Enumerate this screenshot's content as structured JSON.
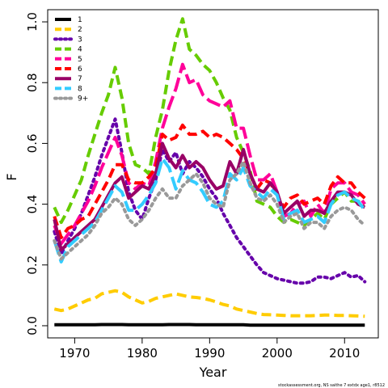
{
  "chart_data": {
    "type": "line",
    "xlabel": "Year",
    "ylabel": "F",
    "xlim": [
      1966,
      2015
    ],
    "ylim": [
      -0.04,
      1.04
    ],
    "xticks": [
      1970,
      1980,
      1990,
      2000,
      2010
    ],
    "yticks": [
      0.0,
      0.2,
      0.4,
      0.6,
      0.8,
      1.0
    ],
    "xtick_labels": [
      "1970",
      "1980",
      "1990",
      "2000",
      "2010"
    ],
    "ytick_labels": [
      "0.0",
      "0.2",
      "0.4",
      "0.6",
      "0.8",
      "1.0"
    ],
    "grid": false,
    "legend_position": "top-left",
    "footnote": "stockassessment.org, NS saithe 7 extdx age1, r8512",
    "x": [
      1967,
      1968,
      1969,
      1970,
      1971,
      1972,
      1973,
      1974,
      1975,
      1976,
      1977,
      1978,
      1979,
      1980,
      1981,
      1982,
      1983,
      1984,
      1985,
      1986,
      1987,
      1988,
      1989,
      1990,
      1991,
      1992,
      1993,
      1994,
      1995,
      1996,
      1997,
      1998,
      1999,
      2000,
      2001,
      2002,
      2003,
      2004,
      2005,
      2006,
      2007,
      2008,
      2009,
      2010,
      2011,
      2012,
      2013
    ],
    "series": [
      {
        "name": "1",
        "color": "#000000",
        "dash": "solid",
        "values": [
          0.003,
          0.003,
          0.003,
          0.003,
          0.003,
          0.003,
          0.003,
          0.004,
          0.004,
          0.004,
          0.004,
          0.003,
          0.003,
          0.003,
          0.003,
          0.003,
          0.003,
          0.004,
          0.004,
          0.004,
          0.004,
          0.003,
          0.003,
          0.003,
          0.003,
          0.003,
          0.003,
          0.003,
          0.003,
          0.002,
          0.002,
          0.002,
          0.002,
          0.002,
          0.002,
          0.002,
          0.002,
          0.002,
          0.002,
          0.002,
          0.002,
          0.002,
          0.002,
          0.002,
          0.002,
          0.002,
          0.002
        ]
      },
      {
        "name": "2",
        "color": "#FFCC00",
        "dash": "dashed",
        "values": [
          0.055,
          0.05,
          0.055,
          0.065,
          0.075,
          0.085,
          0.09,
          0.105,
          0.11,
          0.115,
          0.11,
          0.095,
          0.085,
          0.075,
          0.08,
          0.09,
          0.095,
          0.1,
          0.105,
          0.1,
          0.095,
          0.093,
          0.09,
          0.085,
          0.078,
          0.07,
          0.065,
          0.055,
          0.05,
          0.045,
          0.04,
          0.037,
          0.036,
          0.035,
          0.034,
          0.033,
          0.033,
          0.033,
          0.033,
          0.034,
          0.035,
          0.035,
          0.034,
          0.034,
          0.033,
          0.032,
          0.031
        ]
      },
      {
        "name": "3",
        "color": "#6600AA",
        "dash": "dotted",
        "values": [
          0.31,
          0.235,
          0.28,
          0.32,
          0.37,
          0.43,
          0.49,
          0.56,
          0.62,
          0.68,
          0.57,
          0.44,
          0.38,
          0.35,
          0.42,
          0.48,
          0.58,
          0.54,
          0.57,
          0.5,
          0.54,
          0.52,
          0.49,
          0.45,
          0.42,
          0.37,
          0.33,
          0.29,
          0.26,
          0.23,
          0.2,
          0.175,
          0.165,
          0.155,
          0.15,
          0.145,
          0.14,
          0.14,
          0.145,
          0.16,
          0.16,
          0.155,
          0.165,
          0.175,
          0.16,
          0.165,
          0.145
        ]
      },
      {
        "name": "4",
        "color": "#66CC00",
        "dash": "dashed",
        "values": [
          0.39,
          0.34,
          0.38,
          0.43,
          0.48,
          0.56,
          0.63,
          0.7,
          0.76,
          0.85,
          0.75,
          0.6,
          0.53,
          0.52,
          0.5,
          0.62,
          0.71,
          0.84,
          0.94,
          1.01,
          0.91,
          0.89,
          0.86,
          0.84,
          0.8,
          0.75,
          0.71,
          0.62,
          0.57,
          0.51,
          0.41,
          0.4,
          0.39,
          0.36,
          0.34,
          0.35,
          0.34,
          0.33,
          0.35,
          0.37,
          0.35,
          0.4,
          0.42,
          0.44,
          0.41,
          0.41,
          0.4
        ]
      },
      {
        "name": "5",
        "color": "#FF0099",
        "dash": "longdash",
        "values": [
          0.33,
          0.27,
          0.3,
          0.33,
          0.37,
          0.41,
          0.46,
          0.52,
          0.57,
          0.62,
          0.56,
          0.47,
          0.45,
          0.47,
          0.46,
          0.54,
          0.65,
          0.72,
          0.78,
          0.86,
          0.8,
          0.81,
          0.76,
          0.74,
          0.73,
          0.72,
          0.74,
          0.65,
          0.65,
          0.56,
          0.48,
          0.48,
          0.5,
          0.44,
          0.36,
          0.37,
          0.4,
          0.41,
          0.36,
          0.4,
          0.37,
          0.45,
          0.47,
          0.47,
          0.44,
          0.43,
          0.4
        ]
      },
      {
        "name": "6",
        "color": "#FF0000",
        "dash": "dashed",
        "values": [
          0.36,
          0.29,
          0.32,
          0.33,
          0.35,
          0.36,
          0.4,
          0.44,
          0.48,
          0.53,
          0.53,
          0.48,
          0.47,
          0.47,
          0.49,
          0.52,
          0.63,
          0.61,
          0.62,
          0.66,
          0.63,
          0.63,
          0.64,
          0.62,
          0.63,
          0.62,
          0.6,
          0.58,
          0.55,
          0.5,
          0.45,
          0.48,
          0.47,
          0.43,
          0.39,
          0.42,
          0.43,
          0.4,
          0.41,
          0.42,
          0.4,
          0.46,
          0.49,
          0.47,
          0.47,
          0.44,
          0.42
        ]
      },
      {
        "name": "7",
        "color": "#990066",
        "dash": "solid",
        "values": [
          0.35,
          0.25,
          0.27,
          0.29,
          0.31,
          0.33,
          0.35,
          0.39,
          0.43,
          0.47,
          0.49,
          0.42,
          0.44,
          0.46,
          0.45,
          0.5,
          0.6,
          0.55,
          0.52,
          0.56,
          0.52,
          0.54,
          0.52,
          0.48,
          0.45,
          0.46,
          0.54,
          0.5,
          0.58,
          0.5,
          0.45,
          0.44,
          0.47,
          0.44,
          0.37,
          0.39,
          0.41,
          0.36,
          0.38,
          0.38,
          0.37,
          0.41,
          0.44,
          0.44,
          0.43,
          0.4,
          0.39
        ]
      },
      {
        "name": "8",
        "color": "#33CCFF",
        "dash": "longdash",
        "values": [
          0.28,
          0.21,
          0.26,
          0.28,
          0.3,
          0.32,
          0.34,
          0.38,
          0.42,
          0.46,
          0.44,
          0.38,
          0.38,
          0.4,
          0.43,
          0.47,
          0.55,
          0.52,
          0.45,
          0.51,
          0.48,
          0.47,
          0.44,
          0.4,
          0.39,
          0.41,
          0.5,
          0.48,
          0.52,
          0.46,
          0.44,
          0.42,
          0.45,
          0.43,
          0.35,
          0.37,
          0.38,
          0.34,
          0.35,
          0.36,
          0.34,
          0.4,
          0.43,
          0.44,
          0.42,
          0.41,
          0.38
        ]
      },
      {
        "name": "9+",
        "color": "#999999",
        "dash": "dotted",
        "values": [
          0.28,
          0.22,
          0.24,
          0.26,
          0.28,
          0.3,
          0.33,
          0.37,
          0.39,
          0.42,
          0.4,
          0.35,
          0.33,
          0.35,
          0.38,
          0.42,
          0.45,
          0.42,
          0.42,
          0.46,
          0.48,
          0.5,
          0.47,
          0.42,
          0.4,
          0.39,
          0.48,
          0.5,
          0.54,
          0.47,
          0.42,
          0.41,
          0.43,
          0.4,
          0.34,
          0.36,
          0.37,
          0.32,
          0.34,
          0.34,
          0.32,
          0.36,
          0.38,
          0.39,
          0.38,
          0.35,
          0.33
        ]
      }
    ]
  }
}
